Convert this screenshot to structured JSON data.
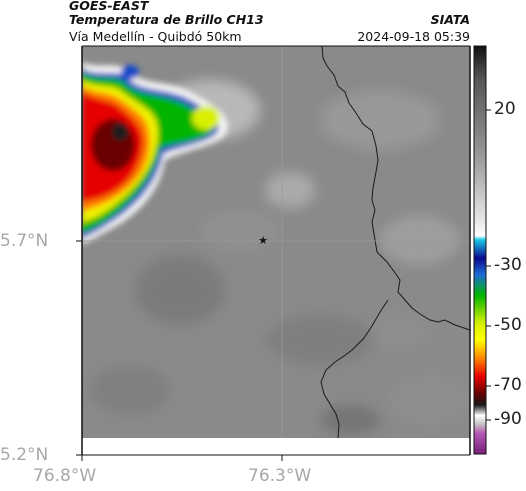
{
  "header": {
    "satellite": "GOES-EAST",
    "product": "Temperatura de Brillo CH13",
    "route": "Vía Medellín - Quibdó 50km",
    "organization": "SIATA",
    "datetime": "2024-09-18 05:39"
  },
  "map": {
    "lat_ticks": [
      "5.7°N",
      "5.2°N"
    ],
    "lon_ticks": [
      "76.8°W",
      "76.3°W"
    ],
    "marker_symbol": "star-marker",
    "base_color": "#858585"
  },
  "colorbar": {
    "ticks": [
      "20",
      "-30",
      "-50",
      "-70",
      "-90"
    ],
    "colors": [
      "#111111",
      "#5a5a5a",
      "#9a9a9a",
      "#e8e8e8",
      "#6fe1f5",
      "#0b0b8a",
      "#00a000",
      "#f0f000",
      "#ff2000",
      "#6a0000",
      "#111111",
      "#ffffff",
      "#9c2c9c"
    ]
  }
}
